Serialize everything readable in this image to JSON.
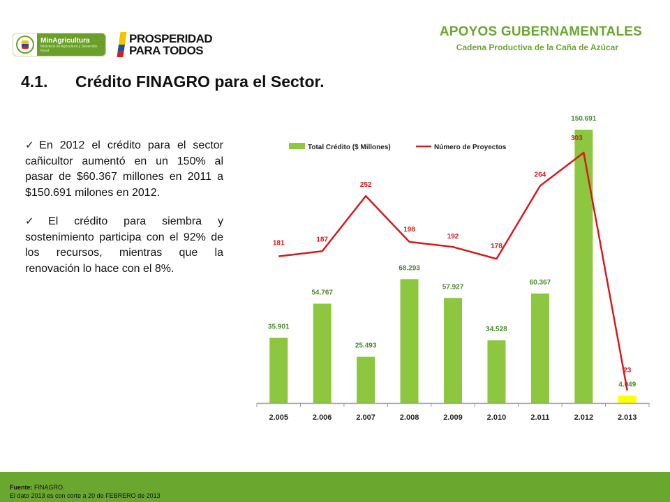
{
  "header": {
    "logo_ministry_name": "MinAgricultura",
    "logo_ministry_sub": "Ministerio de Agricultura y Desarrollo Rural",
    "logo_prosperidad_line1": "PROSPERIDAD",
    "logo_prosperidad_line2": "PARA TODOS",
    "title": "APOYOS GUBERNAMENTALES",
    "subtitle": "Cadena Productiva de la Caña de Azúcar"
  },
  "slide": {
    "number": "4.1.",
    "title": "Crédito FINAGRO para el Sector."
  },
  "bullets": [
    "En 2012 el crédito para el sector cañicultor aumentó en un 150% al pasar de $60.367 millones en 2011 a $150.691 milones en 2012.",
    "El crédito para siembra y sostenimiento participa con el 92% de los recursos, mientras que la renovación lo hace con el 8%."
  ],
  "colors": {
    "accent_green": "#6aa72f",
    "bar_green": "#8dc63f",
    "bar_highlight": "#ffff00",
    "line_red": "#d7191c"
  },
  "chart_data": {
    "type": "bar",
    "categories": [
      "2.005",
      "2.006",
      "2.007",
      "2.008",
      "2.009",
      "2.010",
      "2.011",
      "2.012",
      "2.013"
    ],
    "series": [
      {
        "name": "Total Crédito ($ Millones)",
        "type": "bar",
        "values": [
          35901,
          54767,
          25493,
          68293,
          57927,
          34528,
          60367,
          150691,
          4049
        ],
        "labels": [
          "35.901",
          "54.767",
          "25.493",
          "68.293",
          "57.927",
          "34.528",
          "60.367",
          "150.691",
          "4.049"
        ]
      },
      {
        "name": "Número de Proyectos",
        "type": "line",
        "values": [
          181,
          187,
          252,
          198,
          192,
          178,
          264,
          303,
          23
        ],
        "labels": [
          "181",
          "187",
          "252",
          "198",
          "192",
          "178",
          "264",
          "303",
          "23"
        ]
      }
    ],
    "bar_axis_range": [
      0,
      150691
    ],
    "line_axis_range": [
      0,
      303
    ],
    "legend_position": "top",
    "grid": false
  },
  "footer": {
    "source_label": "Fuente:",
    "source_value": " FINAGRO.",
    "note": "El dato 2013  es con corte a 20 de FEBRERO de 2013"
  }
}
